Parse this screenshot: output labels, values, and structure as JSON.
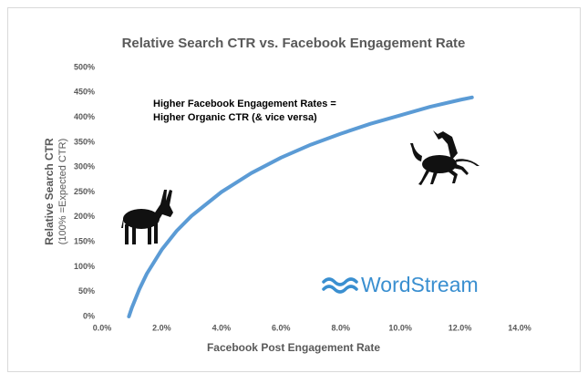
{
  "chart_data": {
    "type": "line",
    "title": "Relative Search CTR vs. Facebook Engagement Rate",
    "x_label": "Facebook Post Engagement Rate",
    "y_label": [
      "Relative Search CTR",
      "(100% =Expected CTR)"
    ],
    "annotations": [
      "Higher Facebook Engagement Rates =",
      "Higher Organic CTR (& vice versa)"
    ],
    "logo": "WordStream",
    "x": [
      0.9,
      1,
      1.25,
      1.5,
      2,
      2.5,
      3,
      4,
      5,
      6,
      7,
      8,
      9,
      10,
      11,
      12,
      12.4
    ],
    "series": [
      {
        "color": "#5b9bd5",
        "values": [
          0,
          18,
          55,
          86,
          134,
          172,
          202,
          250,
          288,
          319,
          345,
          367,
          387,
          404,
          421,
          435,
          440
        ]
      }
    ],
    "xlim": [
      0,
      14
    ],
    "xticks": [
      {
        "value": 0,
        "label": "0.0%"
      },
      {
        "value": 2,
        "label": "2.0%"
      },
      {
        "value": 4,
        "label": "4.0%"
      },
      {
        "value": 6,
        "label": "6.0%"
      },
      {
        "value": 8,
        "label": "8.0%"
      },
      {
        "value": 10,
        "label": "10.0%"
      },
      {
        "value": 12,
        "label": "12.0%"
      },
      {
        "value": 14,
        "label": "14.0%"
      }
    ],
    "ylim": [
      0,
      500
    ],
    "yticks": [
      {
        "value": 0,
        "label": "0%"
      },
      {
        "value": 50,
        "label": "50%"
      },
      {
        "value": 100,
        "label": "100%"
      },
      {
        "value": 150,
        "label": "150%"
      },
      {
        "value": 200,
        "label": "200%"
      },
      {
        "value": 250,
        "label": "250%"
      },
      {
        "value": 300,
        "label": "300%"
      },
      {
        "value": 350,
        "label": "350%"
      },
      {
        "value": 400,
        "label": "400%"
      },
      {
        "value": 450,
        "label": "450%"
      },
      {
        "value": 500,
        "label": "500%"
      }
    ],
    "grid": false
  }
}
